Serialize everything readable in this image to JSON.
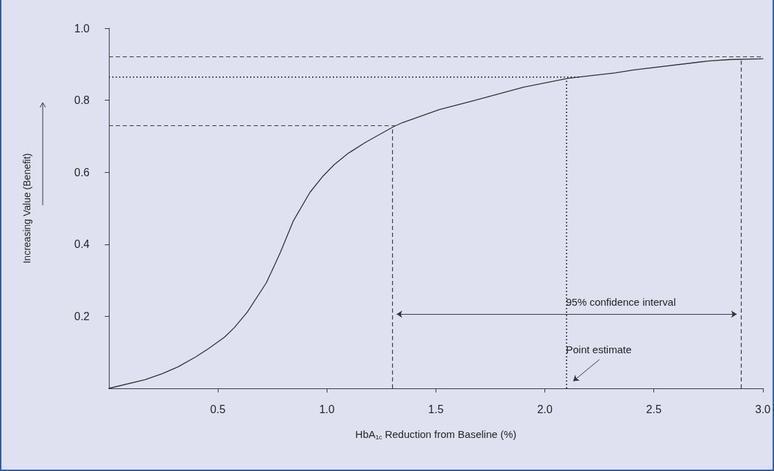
{
  "chart_data": {
    "type": "line",
    "xlabel": "HbA$_{1c}$ Reduction from Baseline (%)",
    "ylabel": "Increasing Value (Benefit)",
    "x": [
      0,
      0.166,
      0.245,
      0.318,
      0.4,
      0.456,
      0.53,
      0.576,
      0.635,
      0.722,
      0.753,
      0.787,
      0.846,
      0.922,
      0.983,
      1.033,
      1.096,
      1.177,
      1.307,
      1.347,
      1.516,
      1.668,
      1.899,
      2.108,
      2.322,
      2.406,
      2.75,
      2.846,
      3.0
    ],
    "series": [
      {
        "color": "#2b2b2b",
        "values": [
          0,
          0.024,
          0.041,
          0.06,
          0.088,
          0.11,
          0.142,
          0.169,
          0.212,
          0.293,
          0.333,
          0.378,
          0.465,
          0.544,
          0.59,
          0.621,
          0.652,
          0.683,
          0.727,
          0.738,
          0.774,
          0.798,
          0.836,
          0.861,
          0.876,
          0.884,
          0.909,
          0.913,
          0.915
        ]
      }
    ],
    "xlim": [
      0,
      3
    ],
    "xticks": [
      0.5,
      {
        "value": 1,
        "label": "1.0"
      },
      1.5,
      {
        "value": 2,
        "label": "2.0"
      },
      2.5,
      {
        "value": 3,
        "label": "3.0"
      }
    ],
    "ylim": [
      0,
      1
    ],
    "yticks": [
      0.2,
      0.4,
      0.6,
      0.8,
      {
        "value": 1,
        "label": "1.0"
      }
    ],
    "ref_lines": [
      {
        "axis": "y",
        "value": 0.922,
        "line_style": "dashed",
        "color": "#333333"
      },
      {
        "axis": "y",
        "value": 0.865,
        "line_style": "dotted",
        "color": "#222222"
      },
      {
        "axis": "y",
        "value": 0.729,
        "line_style": "dashed",
        "color": "#333333"
      },
      {
        "axis": "x",
        "value": 1.3,
        "line_style": "dashed",
        "color": "#333333"
      },
      {
        "axis": "x",
        "value": 2.1,
        "line_style": "dotted",
        "color": "#222222"
      },
      {
        "axis": "x",
        "value": 2.9,
        "line_style": "dashed",
        "color": "#333333"
      }
    ],
    "annotations": [
      {
        "text": "95% confidence interval",
        "x": 2.1,
        "y": 0.206
      },
      {
        "text": "Point estimate",
        "x": 2.1,
        "y": 0.1
      }
    ],
    "marker": "none",
    "line_style": "solid"
  }
}
